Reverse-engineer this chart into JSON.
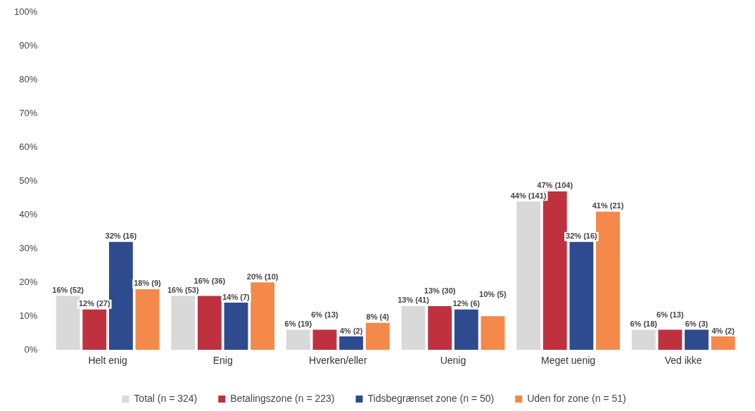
{
  "chart_data": {
    "type": "bar",
    "categories": [
      "Helt enig",
      "Enig",
      "Hverken/eller",
      "Uenig",
      "Meget uenig",
      "Ved ikke"
    ],
    "series": [
      {
        "name": "Total (n = 324)",
        "color": "#d9d9d9",
        "values": [
          16,
          16,
          6,
          13,
          44,
          6
        ],
        "value_labels": [
          "16% (52)",
          "16% (53)",
          "6% (19)",
          "13% (41)",
          "44% (141)",
          "6% (18)"
        ]
      },
      {
        "name": "Betalingszone (n = 223)",
        "color": "#c0313f",
        "values": [
          12,
          16,
          6,
          13,
          47,
          6
        ],
        "value_labels": [
          "12% (27)",
          "16% (36)",
          "6% (13)",
          "13% (30)",
          "47% (104)",
          "6% (13)"
        ]
      },
      {
        "name": "Tidsbegrænset zone (n = 50)",
        "color": "#2e4b8f",
        "values": [
          32,
          14,
          4,
          12,
          32,
          6
        ],
        "value_labels": [
          "32% (16)",
          "14% (7)",
          "4% (2)",
          "12% (6)",
          "32% (16)",
          "6% (3)"
        ]
      },
      {
        "name": "Uden for zone (n = 51)",
        "color": "#f4894a",
        "values": [
          18,
          20,
          8,
          10,
          41,
          4
        ],
        "value_labels": [
          "18% (9)",
          "20% (10)",
          "8% (4)",
          "10% (5)",
          "41% (21)",
          "4% (2)"
        ]
      }
    ],
    "ylim": [
      0,
      100
    ],
    "yticks": [
      {
        "value": 0,
        "label": "0%"
      },
      {
        "value": 10,
        "label": "10%"
      },
      {
        "value": 20,
        "label": "20%"
      },
      {
        "value": 30,
        "label": "30%"
      },
      {
        "value": 40,
        "label": "40%"
      },
      {
        "value": 50,
        "label": "50%"
      },
      {
        "value": 60,
        "label": "60%"
      },
      {
        "value": 70,
        "label": "70%"
      },
      {
        "value": 80,
        "label": "80%"
      },
      {
        "value": 90,
        "label": "90%"
      },
      {
        "value": 100,
        "label": "100%"
      }
    ],
    "grid": false,
    "legend": "bottom"
  }
}
